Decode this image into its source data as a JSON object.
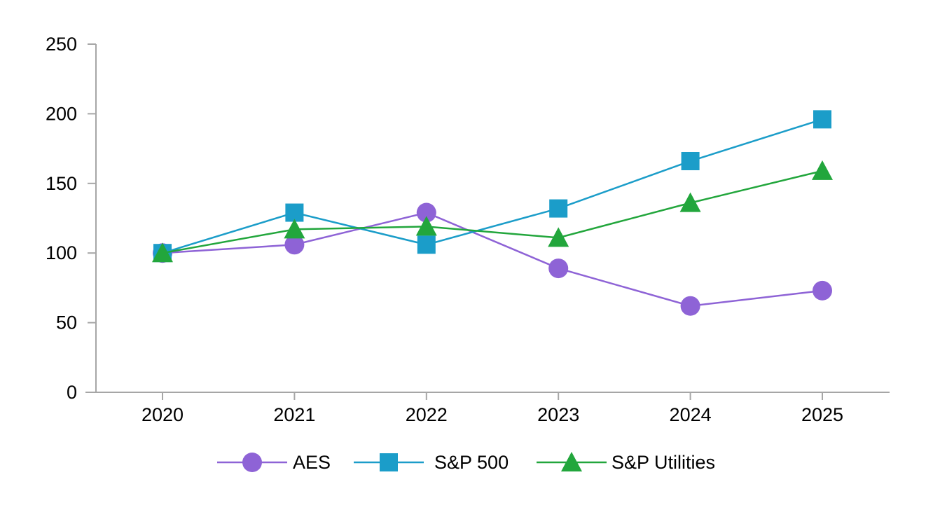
{
  "chart_data": {
    "type": "line",
    "categories": [
      "2020",
      "2021",
      "2022",
      "2023",
      "2024",
      "2025"
    ],
    "series": [
      {
        "name": "AES",
        "marker": "circle",
        "color": "#8E63D6",
        "values": [
          100,
          106,
          129,
          89,
          62,
          73
        ]
      },
      {
        "name": "S&P 500",
        "marker": "square",
        "color": "#1B9DC9",
        "values": [
          100,
          129,
          106,
          132,
          166,
          196
        ]
      },
      {
        "name": "S&P Utilities",
        "marker": "triangle",
        "color": "#22A63C",
        "values": [
          100,
          117,
          119,
          111,
          136,
          159
        ]
      }
    ],
    "title": "",
    "xlabel": "",
    "ylabel": "",
    "ylim": [
      0,
      250
    ],
    "yticks": [
      0,
      50,
      100,
      150,
      200,
      250
    ],
    "grid": false,
    "legend_position": "bottom",
    "axis_color": "#A6A6A6",
    "text_color": "#000000",
    "background": "#FFFFFF"
  }
}
